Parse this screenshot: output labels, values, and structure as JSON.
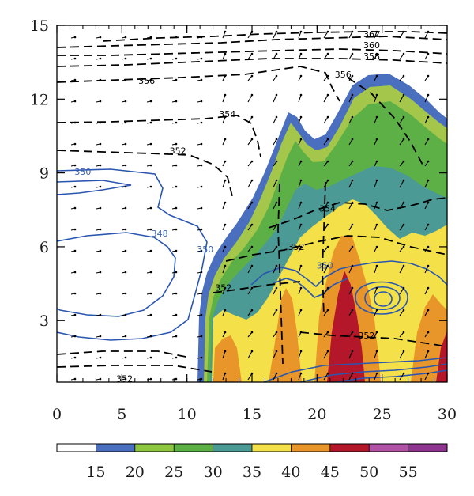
{
  "chart_data": {
    "type": "contour",
    "title": "",
    "xlabel": "",
    "ylabel": "",
    "xlim": [
      0,
      30
    ],
    "ylim": [
      0.5,
      15
    ],
    "x_ticks": [
      "0",
      "5",
      "10",
      "15",
      "20",
      "25",
      "30"
    ],
    "y_ticks": [
      "3",
      "6",
      "9",
      "12",
      "15"
    ],
    "colorbar": {
      "levels": [
        15,
        20,
        25,
        30,
        35,
        40,
        45,
        50,
        55
      ],
      "labels": [
        "15",
        "20",
        "25",
        "30",
        "35",
        "40",
        "45",
        "50",
        "55"
      ],
      "colors": [
        "#ffffff",
        "#4a6fbf",
        "#8dc63f",
        "#5cb046",
        "#4b9a96",
        "#f4e14a",
        "#e8962a",
        "#b5172a",
        "#b052a6",
        "#8e3590"
      ]
    },
    "contour_labels": [
      {
        "text": "362",
        "x": 24.2,
        "y": 14.65,
        "color": "#000000"
      },
      {
        "text": "360",
        "x": 24.2,
        "y": 14.2,
        "color": "#000000"
      },
      {
        "text": "358",
        "x": 24.2,
        "y": 13.75,
        "color": "#000000"
      },
      {
        "text": "356",
        "x": 6.9,
        "y": 12.75,
        "color": "#000000"
      },
      {
        "text": "356",
        "x": 22.0,
        "y": 13.0,
        "color": "#000000"
      },
      {
        "text": "354",
        "x": 13.1,
        "y": 11.4,
        "color": "#000000"
      },
      {
        "text": "352",
        "x": 9.3,
        "y": 9.9,
        "color": "#000000"
      },
      {
        "text": "354",
        "x": 20.8,
        "y": 7.55,
        "color": "#000000"
      },
      {
        "text": "352",
        "x": 18.4,
        "y": 6.0,
        "color": "#000000"
      },
      {
        "text": "352",
        "x": 12.8,
        "y": 4.35,
        "color": "#000000"
      },
      {
        "text": "352",
        "x": 23.8,
        "y": 2.4,
        "color": "#000000"
      },
      {
        "text": "352",
        "x": 5.2,
        "y": 0.65,
        "color": "#000000"
      },
      {
        "text": "350",
        "x": 2.0,
        "y": 9.05,
        "color": "#3a5fb0"
      },
      {
        "text": "348",
        "x": 7.9,
        "y": 6.55,
        "color": "#3a5fb0"
      },
      {
        "text": "350",
        "x": 11.4,
        "y": 5.9,
        "color": "#3a5fb0"
      },
      {
        "text": "350",
        "x": 20.6,
        "y": 5.25,
        "color": "#3a5fb0"
      }
    ]
  }
}
